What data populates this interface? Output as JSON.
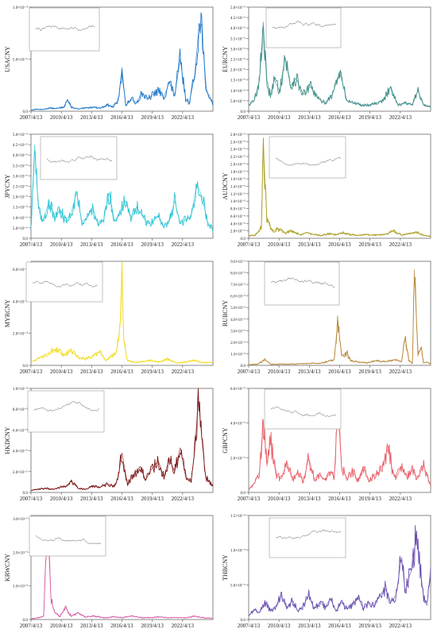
{
  "chart_data": [
    {
      "type": "line",
      "ylabel": "USACNY",
      "color": "#1f77c8",
      "ylim": [
        0,
        10
      ],
      "yticks": [
        0,
        5,
        10
      ],
      "ytick_labels": [
        "0.0",
        "5.0×10⁻⁵",
        "1.0×10⁻⁴"
      ],
      "x_ticks": [
        "2007/4/13",
        "2010/4/13",
        "2013/4/13",
        "2016/4/13",
        "2019/4/13",
        "2022/4/13"
      ],
      "x": [
        0,
        0.03,
        0.06,
        0.1,
        0.14,
        0.18,
        0.2,
        0.22,
        0.24,
        0.26,
        0.3,
        0.34,
        0.38,
        0.42,
        0.45,
        0.48,
        0.5,
        0.52,
        0.55,
        0.58,
        0.61,
        0.64,
        0.67,
        0.7,
        0.73,
        0.76,
        0.79,
        0.82,
        0.85,
        0.87,
        0.9,
        0.92,
        0.94,
        0.96,
        0.98,
        1.0
      ],
      "values": [
        0.1,
        0.2,
        0.15,
        0.3,
        0.25,
        0.4,
        1.1,
        0.4,
        0.3,
        0.2,
        0.3,
        0.4,
        0.3,
        0.6,
        0.4,
        1.0,
        4.2,
        0.5,
        1.2,
        0.8,
        1.8,
        1.1,
        1.6,
        2.0,
        1.3,
        2.8,
        1.5,
        5.0,
        1.2,
        0.8,
        3.5,
        7.5,
        8.5,
        2.0,
        1.5,
        0.6
      ]
    },
    {
      "type": "line",
      "ylabel": "EURCNY",
      "color": "#3f8f8a",
      "ylim": [
        0,
        5
      ],
      "yticks": [
        0,
        0.5,
        1,
        1.5,
        2,
        2.5,
        3,
        3.5,
        4,
        4.5,
        5
      ],
      "ytick_labels": [
        "0.0",
        "5.0×10⁻⁶",
        "1.0×10⁻⁵",
        "1.5×10⁻⁵",
        "2.0×10⁻⁵",
        "2.5×10⁻⁵",
        "3.0×10⁻⁵",
        "3.5×10⁻⁵",
        "4.0×10⁻⁵",
        "4.5×10⁻⁵",
        "5.0×10⁻⁵"
      ],
      "x_ticks": [
        "2007/4/13",
        "2010/4/13",
        "2013/4/13",
        "2016/4/13",
        "2019/4/13",
        "2022/4/13"
      ],
      "x": [
        0,
        0.03,
        0.06,
        0.08,
        0.1,
        0.12,
        0.14,
        0.17,
        0.2,
        0.23,
        0.26,
        0.3,
        0.34,
        0.38,
        0.42,
        0.46,
        0.5,
        0.54,
        0.58,
        0.62,
        0.66,
        0.7,
        0.74,
        0.78,
        0.82,
        0.86,
        0.9,
        0.93,
        0.96,
        1.0
      ],
      "values": [
        0.3,
        0.5,
        1.5,
        4.3,
        1.2,
        0.8,
        1.5,
        1.0,
        2.6,
        1.2,
        1.6,
        0.8,
        1.2,
        0.6,
        0.4,
        0.8,
        1.9,
        0.5,
        0.4,
        0.3,
        0.3,
        0.4,
        0.5,
        1.2,
        0.3,
        0.4,
        0.3,
        1.0,
        0.3,
        0.2
      ]
    },
    {
      "type": "line",
      "ylabel": "JPYCNY",
      "color": "#2ec4d6",
      "ylim": [
        0,
        5
      ],
      "yticks": [
        0,
        0.5,
        1,
        1.5,
        2,
        2.5,
        3,
        3.5,
        4,
        4.5,
        5
      ],
      "ytick_labels": [
        "0.0",
        "5.0×10⁻⁶",
        "1.0×10⁻⁵",
        "1.5×10⁻⁵",
        "2.0×10⁻⁵",
        "2.5×10⁻⁵",
        "3.0×10⁻⁵",
        "3.5×10⁻⁵",
        "4.0×10⁻⁵",
        "4.5×10⁻⁵",
        "5.0×10⁻⁵"
      ],
      "x_ticks": [
        "2007/4/13",
        "2010/4/13",
        "2013/4/13",
        "2016/4/13",
        "2019/4/13",
        "2022/4/13"
      ],
      "x": [
        0,
        0.02,
        0.04,
        0.06,
        0.08,
        0.1,
        0.13,
        0.16,
        0.19,
        0.22,
        0.25,
        0.28,
        0.31,
        0.34,
        0.37,
        0.4,
        0.43,
        0.46,
        0.49,
        0.52,
        0.55,
        0.58,
        0.61,
        0.64,
        0.67,
        0.7,
        0.73,
        0.76,
        0.79,
        0.82,
        0.85,
        0.88,
        0.91,
        0.94,
        0.97,
        1.0
      ],
      "values": [
        0.5,
        4.5,
        1.5,
        0.8,
        1.2,
        1.8,
        0.9,
        1.4,
        0.8,
        1.2,
        2.2,
        0.8,
        1.0,
        1.5,
        0.6,
        0.9,
        2.2,
        0.8,
        1.3,
        1.8,
        0.9,
        1.5,
        1.1,
        0.7,
        0.8,
        1.1,
        0.6,
        0.8,
        1.8,
        0.7,
        0.9,
        1.0,
        2.6,
        2.0,
        0.8,
        0.4
      ]
    },
    {
      "type": "line",
      "ylabel": "AUDCNY",
      "color": "#a89c1e",
      "ylim": [
        0,
        2.8
      ],
      "yticks": [
        0,
        0.2,
        0.4,
        0.6,
        0.8,
        1.0,
        1.2,
        1.4,
        1.6,
        1.8,
        2.0,
        2.2,
        2.4,
        2.6,
        2.8
      ],
      "ytick_labels": [
        "0.0",
        "2.0×10⁻⁶",
        "4.0×10⁻⁶",
        "6.0×10⁻⁶",
        "8.0×10⁻⁶",
        "1.0×10⁻⁵",
        "1.2×10⁻⁵",
        "1.4×10⁻⁵",
        "1.6×10⁻⁵",
        "1.8×10⁻⁵",
        "2.0×10⁻⁵",
        "2.2×10⁻⁵",
        "2.4×10⁻⁵",
        "2.6×10⁻⁵",
        "2.8×10⁻⁵"
      ],
      "x_ticks": [
        "2007/4/13",
        "2010/4/13",
        "2013/4/13",
        "2016/4/13",
        "2019/4/13",
        "2022/4/13"
      ],
      "x": [
        0,
        0.04,
        0.07,
        0.08,
        0.1,
        0.13,
        0.16,
        0.2,
        0.24,
        0.28,
        0.32,
        0.36,
        0.4,
        0.44,
        0.48,
        0.52,
        0.56,
        0.6,
        0.64,
        0.68,
        0.72,
        0.76,
        0.8,
        0.84,
        0.88,
        0.92,
        0.96,
        1.0
      ],
      "values": [
        0.05,
        0.1,
        0.3,
        2.6,
        0.5,
        0.2,
        0.25,
        0.15,
        0.2,
        0.1,
        0.15,
        0.1,
        0.08,
        0.12,
        0.1,
        0.15,
        0.1,
        0.08,
        0.1,
        0.08,
        0.1,
        0.12,
        0.2,
        0.08,
        0.12,
        0.18,
        0.08,
        0.05
      ]
    },
    {
      "type": "line",
      "ylabel": "MYRCNY",
      "color": "#f0dc1e",
      "ylim": [
        0,
        6.5
      ],
      "yticks": [
        0,
        2,
        4,
        6
      ],
      "ytick_labels": [
        "0.0",
        "2.0×10⁻⁴",
        "4.0×10⁻⁴",
        "6.0×10⁻⁴"
      ],
      "x_ticks": [
        "2007/4/13",
        "2010/4/13",
        "2013/4/13",
        "2016/4/13",
        "2019/4/13",
        "2022/4/13"
      ],
      "x": [
        0,
        0.05,
        0.1,
        0.14,
        0.18,
        0.22,
        0.26,
        0.3,
        0.34,
        0.38,
        0.41,
        0.43,
        0.45,
        0.47,
        0.49,
        0.5,
        0.51,
        0.53,
        0.56,
        0.6,
        0.65,
        0.7,
        0.75,
        0.8,
        0.85,
        0.9,
        0.95,
        1.0
      ],
      "values": [
        0.2,
        0.5,
        0.8,
        1.0,
        0.6,
        0.9,
        0.5,
        0.4,
        0.6,
        0.9,
        0.3,
        0.5,
        0.6,
        0.8,
        2.5,
        6.5,
        1.5,
        0.3,
        0.2,
        0.2,
        0.3,
        0.2,
        0.4,
        0.15,
        0.2,
        0.3,
        0.15,
        0.2
      ]
    },
    {
      "type": "line",
      "ylabel": "RUBCNY",
      "color": "#b8893a",
      "ylim": [
        0,
        9
      ],
      "yticks": [
        0,
        1,
        2,
        3,
        4,
        5,
        6,
        7,
        8,
        9
      ],
      "ytick_labels": [
        "0.0",
        "1.0×10⁻³",
        "2.0×10⁻³",
        "3.0×10⁻³",
        "4.0×10⁻³",
        "5.0×10⁻³",
        "6.0×10⁻³",
        "7.0×10⁻³",
        "8.0×10⁻³",
        "9.0×10⁻³"
      ],
      "x_ticks": [
        "2007/4/13",
        "2010/4/13",
        "2013/4/13",
        "2016/4/13",
        "2019/4/13",
        "2022/4/13"
      ],
      "x": [
        0,
        0.05,
        0.09,
        0.12,
        0.2,
        0.3,
        0.4,
        0.47,
        0.49,
        0.51,
        0.54,
        0.56,
        0.6,
        0.65,
        0.7,
        0.75,
        0.8,
        0.84,
        0.86,
        0.88,
        0.9,
        0.91,
        0.93,
        0.95,
        0.96,
        0.98,
        1.0
      ],
      "values": [
        0.05,
        0.1,
        0.5,
        0.1,
        0.1,
        0.15,
        0.2,
        0.5,
        4.0,
        0.8,
        1.1,
        0.4,
        0.3,
        0.2,
        0.4,
        0.3,
        0.5,
        0.3,
        2.5,
        0.4,
        0.2,
        8.3,
        0.8,
        1.6,
        0.2,
        0.3,
        0.1
      ]
    },
    {
      "type": "line",
      "ylabel": "HKDCNY",
      "color": "#7a1616",
      "ylim": [
        0,
        10
      ],
      "yticks": [
        0,
        2,
        4,
        6,
        8,
        10
      ],
      "ytick_labels": [
        "0.0",
        "2.0×10⁻⁵",
        "4.0×10⁻⁵",
        "6.0×10⁻⁵",
        "8.0×10⁻⁵",
        "1.0×10⁻⁴"
      ],
      "x_ticks": [
        "2007/4/13",
        "2010/4/13",
        "2013/4/13",
        "2016/4/13",
        "2019/4/13",
        "2022/4/13"
      ],
      "x": [
        0,
        0.04,
        0.08,
        0.12,
        0.16,
        0.2,
        0.22,
        0.26,
        0.3,
        0.34,
        0.38,
        0.42,
        0.46,
        0.48,
        0.5,
        0.53,
        0.56,
        0.6,
        0.63,
        0.66,
        0.7,
        0.73,
        0.76,
        0.79,
        0.82,
        0.85,
        0.88,
        0.9,
        0.92,
        0.94,
        0.96,
        0.98,
        1.0
      ],
      "values": [
        0.2,
        0.3,
        0.4,
        0.3,
        0.5,
        0.6,
        1.1,
        0.4,
        0.3,
        0.6,
        0.5,
        0.8,
        0.6,
        1.5,
        3.8,
        0.8,
        1.6,
        2.5,
        1.2,
        2.2,
        3.0,
        1.5,
        3.2,
        2.0,
        4.3,
        1.5,
        1.0,
        4.0,
        9.0,
        5.0,
        1.5,
        1.0,
        0.6
      ]
    },
    {
      "type": "line",
      "ylabel": "GBPCNY",
      "color": "#e8606a",
      "ylim": [
        0,
        6
      ],
      "yticks": [
        0,
        2,
        4,
        6
      ],
      "ytick_labels": [
        "0.0",
        "2.0×10⁻⁵",
        "4.0×10⁻⁵",
        "6.0×10⁻⁵"
      ],
      "x_ticks": [
        "2007/4/13",
        "2010/4/13",
        "2013/4/13",
        "2016/4/13",
        "2019/4/13",
        "2022/4/13"
      ],
      "x": [
        0,
        0.03,
        0.06,
        0.08,
        0.1,
        0.12,
        0.15,
        0.18,
        0.21,
        0.24,
        0.27,
        0.3,
        0.33,
        0.36,
        0.39,
        0.42,
        0.45,
        0.47,
        0.49,
        0.51,
        0.54,
        0.57,
        0.6,
        0.63,
        0.66,
        0.69,
        0.72,
        0.75,
        0.77,
        0.79,
        0.81,
        0.84,
        0.87,
        0.9,
        0.93,
        0.96,
        1.0
      ],
      "values": [
        0.2,
        0.5,
        1.2,
        4.2,
        1.5,
        3.0,
        1.0,
        0.8,
        1.8,
        0.7,
        1.2,
        0.6,
        2.0,
        0.8,
        1.0,
        0.7,
        1.2,
        0.9,
        4.9,
        1.5,
        0.8,
        1.2,
        0.7,
        1.5,
        0.6,
        1.0,
        1.2,
        2.0,
        2.7,
        1.2,
        0.8,
        1.5,
        0.9,
        1.3,
        0.8,
        1.6,
        0.4
      ]
    },
    {
      "type": "line",
      "ylabel": "KRWCNY",
      "color": "#d65fa8",
      "ylim": [
        0,
        3.1
      ],
      "yticks": [
        0,
        1,
        2,
        3
      ],
      "ytick_labels": [
        "0.0",
        "1.0×10⁻³",
        "2.0×10⁻³",
        "3.0×10⁻³"
      ],
      "x_ticks": [
        "2007/4/13",
        "2010/4/13",
        "2013/4/13",
        "2016/4/13",
        "2019/4/13",
        "2022/4/13"
      ],
      "x": [
        0,
        0.04,
        0.07,
        0.09,
        0.11,
        0.13,
        0.16,
        0.19,
        0.22,
        0.26,
        0.3,
        0.35,
        0.4,
        0.45,
        0.5,
        0.55,
        0.6,
        0.65,
        0.7,
        0.75,
        0.8,
        0.85,
        0.9,
        0.95,
        1.0
      ],
      "values": [
        0.02,
        0.05,
        0.1,
        3.0,
        0.6,
        0.2,
        0.1,
        0.35,
        0.1,
        0.2,
        0.08,
        0.1,
        0.05,
        0.08,
        0.05,
        0.1,
        0.06,
        0.05,
        0.08,
        0.05,
        0.06,
        0.05,
        0.1,
        0.05,
        0.04
      ]
    },
    {
      "type": "line",
      "ylabel": "THBCNY",
      "color": "#6a4fb0",
      "ylim": [
        0,
        15
      ],
      "yticks": [
        0,
        5,
        10,
        15
      ],
      "ytick_labels": [
        "0.0",
        "5.0×10⁻⁵",
        "1.0×10⁻⁴",
        "1.5×10⁻⁴"
      ],
      "x_ticks": [
        "2007/4/13",
        "2010/4/13",
        "2013/4/13",
        "2016/4/13",
        "2019/4/13",
        "2022/4/13"
      ],
      "x": [
        0,
        0.03,
        0.06,
        0.09,
        0.12,
        0.15,
        0.18,
        0.21,
        0.24,
        0.27,
        0.3,
        0.33,
        0.36,
        0.39,
        0.42,
        0.45,
        0.48,
        0.51,
        0.54,
        0.57,
        0.6,
        0.63,
        0.66,
        0.69,
        0.72,
        0.75,
        0.78,
        0.81,
        0.84,
        0.86,
        0.88,
        0.9,
        0.92,
        0.94,
        0.96,
        0.98,
        1.0
      ],
      "values": [
        0.5,
        1.5,
        1.0,
        2.5,
        1.2,
        2.0,
        3.5,
        1.5,
        2.8,
        1.2,
        2.0,
        3.5,
        1.5,
        2.5,
        1.8,
        3.0,
        1.2,
        2.5,
        1.5,
        2.0,
        3.3,
        1.5,
        2.5,
        1.8,
        3.5,
        4.5,
        2.5,
        3.5,
        9.0,
        4.0,
        6.0,
        7.5,
        12.3,
        8.0,
        3.5,
        2.0,
        7.5
      ]
    }
  ]
}
